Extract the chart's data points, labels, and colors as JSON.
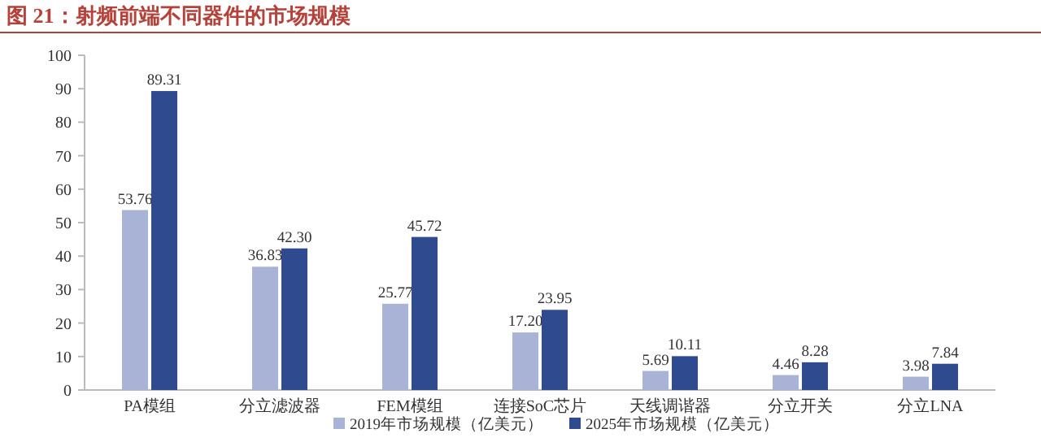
{
  "chart_data": {
    "type": "bar",
    "title": "图 21：射频前端不同器件的市场规模",
    "categories": [
      "PA模组",
      "分立滤波器",
      "FEM模组",
      "连接SoC芯片",
      "天线调谐器",
      "分立开关",
      "分立LNA"
    ],
    "series": [
      {
        "name": "2019年市场规模（亿美元）",
        "color": "#a9b3d6",
        "values": [
          53.76,
          36.83,
          25.77,
          17.2,
          5.69,
          4.46,
          3.98
        ]
      },
      {
        "name": "2025年市场规模（亿美元）",
        "color": "#2f4a8f",
        "values": [
          89.31,
          42.3,
          45.72,
          23.95,
          10.11,
          8.28,
          7.84
        ]
      }
    ],
    "value_labels": [
      [
        "53.76",
        "36.83",
        "25.77",
        "17.20",
        "5.69",
        "4.46",
        "3.98"
      ],
      [
        "89.31",
        "42.30",
        "45.72",
        "23.95",
        "10.11",
        "8.28",
        "7.84"
      ]
    ],
    "ylim": [
      0,
      100
    ],
    "yticks": [
      0,
      10,
      20,
      30,
      40,
      50,
      60,
      70,
      80,
      90,
      100
    ],
    "grid": false,
    "legend": "bottom"
  }
}
